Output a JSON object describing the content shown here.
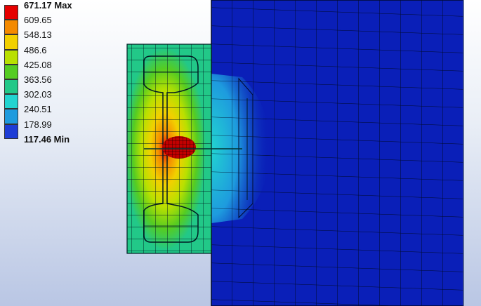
{
  "legend": {
    "max_label": "671.17 Max",
    "min_label": "117.46 Min",
    "levels": [
      "671.17 Max",
      "609.65",
      "548.13",
      "486.6",
      "425.08",
      "363.56",
      "302.03",
      "240.51",
      "178.99",
      "117.46 Min"
    ],
    "colors": [
      "#e60000",
      "#f48a00",
      "#f2d000",
      "#b9e000",
      "#55cc22",
      "#22c888",
      "#22d4d0",
      "#1e9bde",
      "#1e3dd6"
    ]
  },
  "scene": {
    "plate_color": "#0a1fb8",
    "mesh_color": "#001033"
  }
}
